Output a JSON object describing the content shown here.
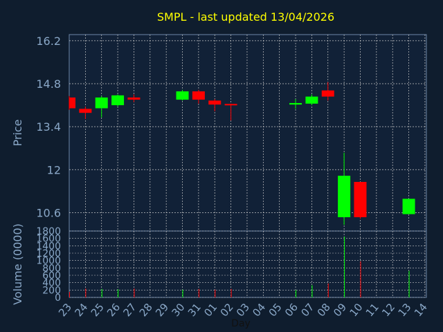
{
  "chart_data": [
    {
      "type": "candlestick",
      "title": "SMPL - last updated 13/04/2026",
      "ylabel": "Price",
      "ylim": [
        10.0,
        16.4
      ],
      "y_ticks": [
        "16.2",
        "14.8",
        "13.4",
        "12",
        "10.6"
      ],
      "grid": true,
      "days": [
        "23",
        "24",
        "25",
        "26",
        "27",
        "28",
        "29",
        "30",
        "31",
        "01",
        "02",
        "03",
        "04",
        "05",
        "06",
        "07",
        "08",
        "09",
        "10",
        "11",
        "12",
        "13",
        "14"
      ],
      "candles": [
        {
          "day": "23",
          "open": 14.35,
          "close": 14.0,
          "high": 14.4,
          "low": 13.95
        },
        {
          "day": "24",
          "open": 13.98,
          "close": 13.85,
          "high": 14.05,
          "low": 13.65
        },
        {
          "day": "25",
          "open": 14.0,
          "close": 14.35,
          "high": 14.4,
          "low": 13.7
        },
        {
          "day": "26",
          "open": 14.1,
          "close": 14.42,
          "high": 14.45,
          "low": 14.05
        },
        {
          "day": "27",
          "open": 14.35,
          "close": 14.28,
          "high": 14.45,
          "low": 14.2
        },
        {
          "day": "30",
          "open": 14.28,
          "close": 14.55,
          "high": 14.6,
          "low": 14.25
        },
        {
          "day": "31",
          "open": 14.55,
          "close": 14.28,
          "high": 14.6,
          "low": 14.15
        },
        {
          "day": "01",
          "open": 14.25,
          "close": 14.12,
          "high": 14.3,
          "low": 13.9
        },
        {
          "day": "02",
          "open": 14.14,
          "close": 14.12,
          "high": 14.15,
          "low": 13.6
        },
        {
          "day": "06",
          "open": 14.12,
          "close": 14.17,
          "high": 14.3,
          "low": 13.98
        },
        {
          "day": "07",
          "open": 14.15,
          "close": 14.38,
          "high": 14.45,
          "low": 14.1
        },
        {
          "day": "08",
          "open": 14.58,
          "close": 14.38,
          "high": 14.85,
          "low": 14.25
        },
        {
          "day": "09",
          "open": 10.45,
          "close": 11.8,
          "high": 12.55,
          "low": 10.2
        },
        {
          "day": "10",
          "open": 11.6,
          "close": 10.45,
          "high": 11.6,
          "low": 10.4
        },
        {
          "day": "13",
          "open": 10.55,
          "close": 11.05,
          "high": 11.05,
          "low": 10.55
        }
      ]
    },
    {
      "type": "bar",
      "xlabel": "Day",
      "ylabel": "Volume (0000)",
      "ylim": [
        0,
        1800
      ],
      "y_ticks": [
        "1800",
        "1600",
        "1400",
        "1200",
        "1000",
        "800",
        "600",
        "400",
        "200",
        "0"
      ],
      "grid": true,
      "categories": [
        "23",
        "24",
        "25",
        "26",
        "27",
        "30",
        "31",
        "01",
        "02",
        "06",
        "07",
        "08",
        "09",
        "10",
        "13"
      ],
      "values": [
        150,
        240,
        230,
        220,
        240,
        210,
        230,
        210,
        230,
        200,
        330,
        380,
        1650,
        980,
        720
      ],
      "direction": [
        "down",
        "down",
        "up",
        "up",
        "down",
        "up",
        "down",
        "down",
        "down",
        "up",
        "up",
        "down",
        "up",
        "down",
        "up"
      ]
    }
  ],
  "colors": {
    "up": "#00ff00",
    "down": "#ff0000",
    "title": "#ffff00",
    "axis_text": "#8aa8c8",
    "panel_bg": "#112137",
    "grid": "#c8c8c8",
    "frame": "#6d87a8"
  }
}
